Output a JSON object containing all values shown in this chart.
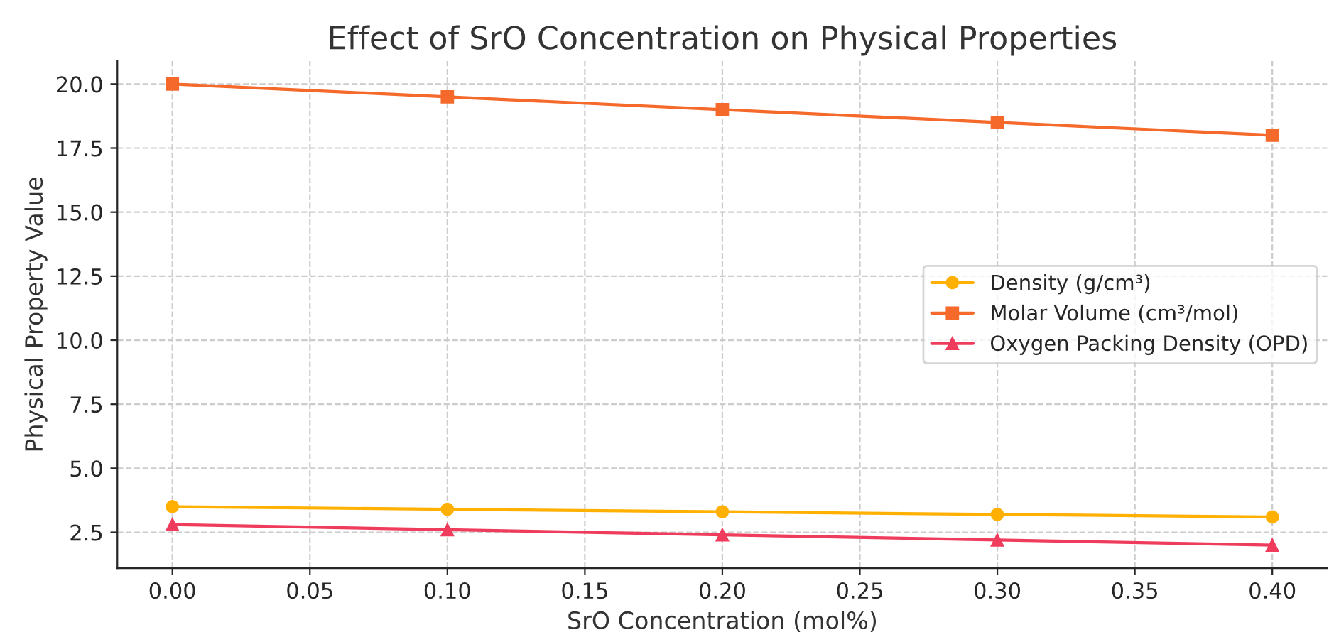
{
  "chart_data": {
    "type": "line",
    "title": "Effect of SrO Concentration on Physical Properties",
    "xlabel": "SrO Concentration (mol%)",
    "ylabel": "Physical Property Value",
    "x": [
      0.0,
      0.1,
      0.2,
      0.3,
      0.4
    ],
    "series": [
      {
        "name": "Density (g/cm³)",
        "color": "#ffb000",
        "marker": "circle",
        "values": [
          3.5,
          3.4,
          3.3,
          3.2,
          3.1
        ]
      },
      {
        "name": "Molar Volume (cm³/mol)",
        "color": "#f5692a",
        "marker": "square",
        "values": [
          20.0,
          19.5,
          19.0,
          18.5,
          18.0
        ]
      },
      {
        "name": "Oxygen Packing Density (OPD)",
        "color": "#f03c5c",
        "marker": "triangle",
        "values": [
          2.8,
          2.6,
          2.4,
          2.2,
          2.0
        ]
      }
    ],
    "xlim": [
      -0.02,
      0.42
    ],
    "xticks": [
      {
        "value": 0.0,
        "label": "0.00"
      },
      {
        "value": 0.05,
        "label": "0.05"
      },
      {
        "value": 0.1,
        "label": "0.10"
      },
      {
        "value": 0.15,
        "label": "0.15"
      },
      {
        "value": 0.2,
        "label": "0.20"
      },
      {
        "value": 0.25,
        "label": "0.25"
      },
      {
        "value": 0.3,
        "label": "0.30"
      },
      {
        "value": 0.35,
        "label": "0.35"
      },
      {
        "value": 0.4,
        "label": "0.40"
      }
    ],
    "ylim": [
      1.1,
      20.9
    ],
    "yticks": [
      2.5,
      {
        "value": 5.0,
        "label": "5.0"
      },
      7.5,
      {
        "value": 10.0,
        "label": "10.0"
      },
      12.5,
      {
        "value": 15.0,
        "label": "15.0"
      },
      17.5,
      {
        "value": 20.0,
        "label": "20.0"
      }
    ],
    "grid": true,
    "legend": "center right",
    "line_style": "solid"
  }
}
